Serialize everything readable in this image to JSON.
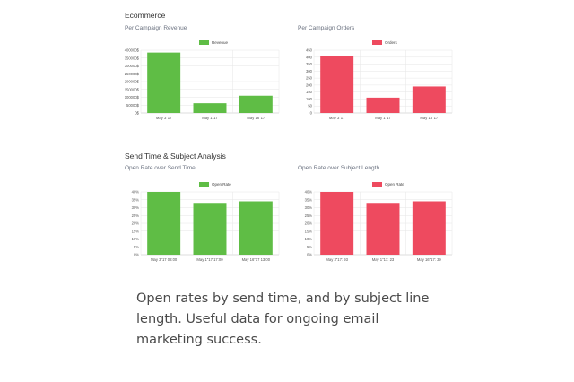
{
  "sections": {
    "ecommerce_title": "Ecommerce",
    "send_time_title": "Send Time & Subject Analysis"
  },
  "caption": "Open rates by send time, and by subject line length. Useful data for ongoing email marketing success.",
  "colors": {
    "green": "#5fbd45",
    "red": "#ee4a5f"
  },
  "chart_data": [
    {
      "id": "revenue",
      "type": "bar",
      "title": "Per Campaign Revenue",
      "categories": [
        "May 3\"17",
        "May 1\"17",
        "May 16\"17"
      ],
      "series": [
        {
          "name": "Revenue",
          "values": [
            385000,
            62000,
            110000
          ]
        }
      ],
      "yticks": [
        "0$",
        "50000$",
        "100000$",
        "150000$",
        "200000$",
        "250000$",
        "300000$",
        "350000$",
        "400000$"
      ],
      "ylim": [
        0,
        400000
      ],
      "legend": "top-center",
      "grid": true,
      "color": "#5fbd45"
    },
    {
      "id": "orders",
      "type": "bar",
      "title": "Per Campaign Orders",
      "categories": [
        "May 3\"17",
        "May 1\"17",
        "May 16\"17"
      ],
      "series": [
        {
          "name": "Orders",
          "values": [
            405,
            110,
            190
          ]
        }
      ],
      "yticks": [
        "0",
        "50",
        "100",
        "150",
        "200",
        "250",
        "300",
        "350",
        "400",
        "450"
      ],
      "ylim": [
        0,
        450
      ],
      "legend": "top-center",
      "grid": true,
      "color": "#ee4a5f"
    },
    {
      "id": "send_time",
      "type": "bar",
      "title": "Open Rate over Send Time",
      "categories": [
        "May 3\"17 08:00",
        "May 1\"17 17:00",
        "May 16\"17 13:00"
      ],
      "series": [
        {
          "name": "Open Rate",
          "values": [
            40,
            33,
            34
          ]
        }
      ],
      "yticks": [
        "0%",
        "5%",
        "10%",
        "15%",
        "20%",
        "25%",
        "30%",
        "35%",
        "40%"
      ],
      "ylim": [
        0,
        40
      ],
      "legend": "top-center",
      "grid": true,
      "color": "#5fbd45"
    },
    {
      "id": "subject_length",
      "type": "bar",
      "title": "Open Rate over Subject Length",
      "categories": [
        "May 3\"17: 93",
        "May 1\"17: 23",
        "May 16\"17: 39"
      ],
      "series": [
        {
          "name": "Open Rate",
          "values": [
            40,
            33,
            34
          ]
        }
      ],
      "yticks": [
        "0%",
        "5%",
        "10%",
        "15%",
        "20%",
        "25%",
        "30%",
        "35%",
        "40%"
      ],
      "ylim": [
        0,
        40
      ],
      "legend": "top-center",
      "grid": true,
      "color": "#ee4a5f"
    }
  ]
}
